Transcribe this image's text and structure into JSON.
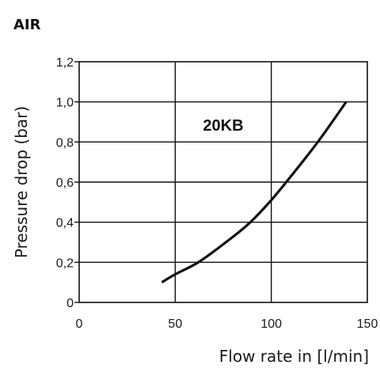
{
  "chart_data": {
    "type": "line",
    "title": "AIR",
    "xlabel": "Flow rate in [l/min]",
    "ylabel": "Pressure drop (bar)",
    "xlim": [
      0,
      150
    ],
    "ylim": [
      0,
      1.2
    ],
    "x_ticks": [
      {
        "value": 0,
        "label": "0"
      },
      {
        "value": 50,
        "label": "50"
      },
      {
        "value": 100,
        "label": "100"
      },
      {
        "value": 150,
        "label": "150"
      }
    ],
    "y_ticks": [
      {
        "value": 0,
        "label": "0"
      },
      {
        "value": 0.2,
        "label": "0,2"
      },
      {
        "value": 0.4,
        "label": "0,4"
      },
      {
        "value": 0.6,
        "label": "0,6"
      },
      {
        "value": 0.8,
        "label": "0,8"
      },
      {
        "value": 1.0,
        "label": "1,0"
      },
      {
        "value": 1.2,
        "label": "1,2"
      }
    ],
    "grid": true,
    "series": [
      {
        "name": "20KB",
        "x": [
          43,
          50,
          62,
          75,
          88,
          100,
          112,
          125,
          139
        ],
        "y": [
          0.1,
          0.14,
          0.2,
          0.29,
          0.39,
          0.51,
          0.65,
          0.81,
          1.0
        ]
      }
    ],
    "colors": {
      "line": "#111111",
      "grid": "#111111",
      "text": "#1a1a1a"
    }
  }
}
